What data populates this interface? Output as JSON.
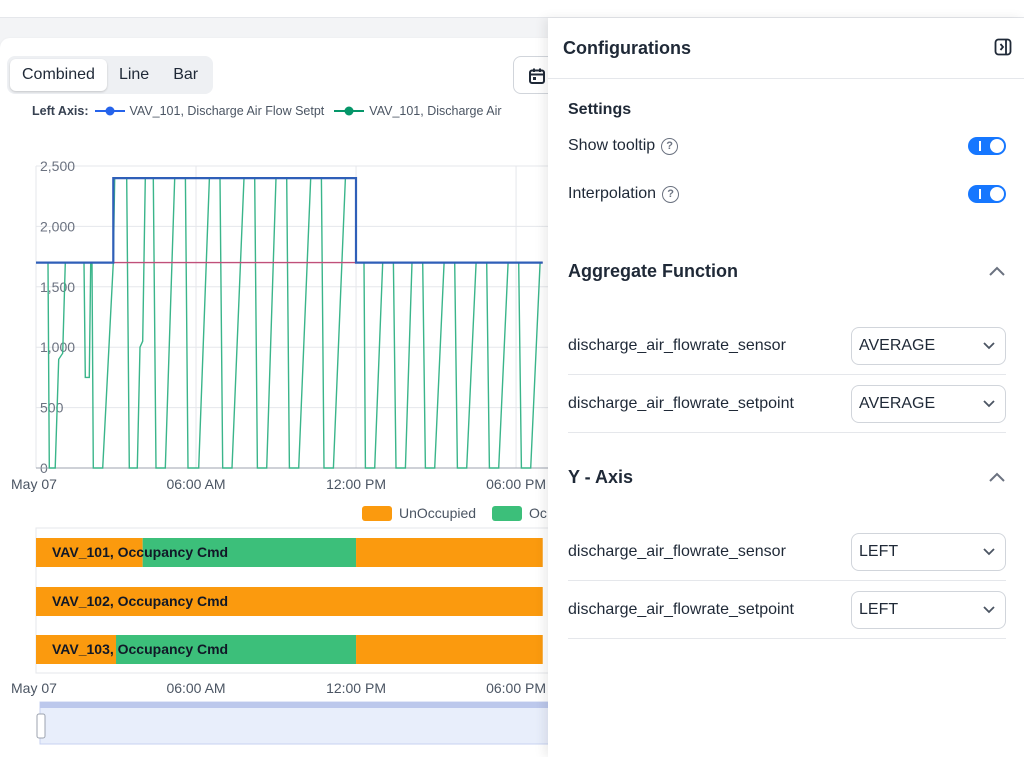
{
  "chart_controls": {
    "tabs": [
      {
        "label": "Combined",
        "active": true
      },
      {
        "label": "Line",
        "active": false
      },
      {
        "label": "Bar",
        "active": false
      }
    ],
    "date_icon": "calendar-icon"
  },
  "legend": {
    "label": "Left Axis:",
    "items": [
      {
        "name": "VAV_101, Discharge Air Flow Setpt",
        "color": "#2563eb"
      },
      {
        "name": "VAV_101, Discharge Air",
        "color": "#059669"
      }
    ]
  },
  "chart_data": [
    {
      "type": "line",
      "x_ticks": [
        "May 07",
        "06:00 AM",
        "12:00 PM",
        "06:00 PM"
      ],
      "y_ticks": [
        "0",
        "500",
        "1,000",
        "1,500",
        "2,000",
        "2,500"
      ],
      "ylim": [
        0,
        2500
      ],
      "grid": true,
      "series": [
        {
          "name": "VAV_101, Discharge Air Flow Setpt",
          "color": "#2f5fb8",
          "points": [
            [
              0,
              1700
            ],
            [
              2.9,
              1700
            ],
            [
              2.9,
              2400
            ],
            [
              12.0,
              2400
            ],
            [
              12.0,
              1700
            ],
            [
              19.0,
              1700
            ]
          ]
        },
        {
          "name": "VAV_101, Discharge Air",
          "color": "#3ab58a",
          "points": [
            [
              0,
              1700
            ],
            [
              0.45,
              1700
            ],
            [
              0.5,
              0
            ],
            [
              0.72,
              0
            ],
            [
              0.85,
              900
            ],
            [
              1.0,
              950
            ],
            [
              1.1,
              1700
            ],
            [
              1.8,
              1700
            ],
            [
              1.85,
              750
            ],
            [
              2.0,
              750
            ],
            [
              2.05,
              1700
            ],
            [
              2.1,
              1700
            ],
            [
              2.15,
              0
            ],
            [
              2.5,
              0
            ],
            [
              2.9,
              1700
            ],
            [
              2.95,
              2400
            ],
            [
              3.4,
              2400
            ],
            [
              3.5,
              0
            ],
            [
              3.8,
              0
            ],
            [
              3.9,
              1000
            ],
            [
              4.0,
              1050
            ],
            [
              4.1,
              2400
            ],
            [
              4.4,
              2400
            ],
            [
              4.5,
              0
            ],
            [
              4.85,
              0
            ],
            [
              5.2,
              2400
            ],
            [
              5.6,
              2400
            ],
            [
              5.7,
              0
            ],
            [
              6.1,
              0
            ],
            [
              6.5,
              2400
            ],
            [
              6.9,
              2400
            ],
            [
              7.0,
              0
            ],
            [
              7.35,
              0
            ],
            [
              7.8,
              2400
            ],
            [
              8.2,
              2400
            ],
            [
              8.3,
              0
            ],
            [
              8.65,
              0
            ],
            [
              9.0,
              2400
            ],
            [
              9.4,
              2400
            ],
            [
              9.5,
              0
            ],
            [
              9.85,
              0
            ],
            [
              10.3,
              2400
            ],
            [
              10.7,
              2400
            ],
            [
              10.8,
              0
            ],
            [
              11.15,
              0
            ],
            [
              11.6,
              2400
            ],
            [
              12.0,
              2400
            ],
            [
              12.0,
              1700
            ],
            [
              12.3,
              1700
            ],
            [
              12.35,
              0
            ],
            [
              12.7,
              0
            ],
            [
              13.0,
              1700
            ],
            [
              13.4,
              1700
            ],
            [
              13.5,
              0
            ],
            [
              13.85,
              0
            ],
            [
              14.1,
              1700
            ],
            [
              14.5,
              1700
            ],
            [
              14.6,
              0
            ],
            [
              14.95,
              0
            ],
            [
              15.3,
              1700
            ],
            [
              15.7,
              1700
            ],
            [
              15.8,
              0
            ],
            [
              16.15,
              0
            ],
            [
              16.5,
              1700
            ],
            [
              16.9,
              1700
            ],
            [
              17.0,
              0
            ],
            [
              17.35,
              0
            ],
            [
              17.7,
              1700
            ],
            [
              18.1,
              1700
            ],
            [
              18.2,
              0
            ],
            [
              18.55,
              0
            ],
            [
              18.9,
              1700
            ]
          ]
        },
        {
          "name": "",
          "color": "#c0507a",
          "points": [
            [
              0,
              1700
            ],
            [
              19.0,
              1700
            ]
          ]
        }
      ]
    },
    {
      "type": "bar",
      "legend": [
        {
          "name": "UnOccupied",
          "color": "#fb9a0e"
        },
        {
          "name": "Oc",
          "color": "#3cbf7a"
        }
      ],
      "x_ticks": [
        "May 07",
        "06:00 AM",
        "12:00 PM",
        "06:00 PM"
      ],
      "rows": [
        {
          "label": "VAV_101, Occupancy Cmd",
          "segments": [
            {
              "state": "UnOccupied",
              "from": 0,
              "to": 4.0
            },
            {
              "state": "Occupied",
              "from": 4.0,
              "to": 12.0
            },
            {
              "state": "UnOccupied",
              "from": 12.0,
              "to": 19.0
            }
          ]
        },
        {
          "label": "VAV_102, Occupancy Cmd",
          "segments": [
            {
              "state": "UnOccupied",
              "from": 0,
              "to": 19.0
            }
          ]
        },
        {
          "label": "VAV_103, Occupancy Cmd",
          "segments": [
            {
              "state": "UnOccupied",
              "from": 0,
              "to": 3.0
            },
            {
              "state": "Occupied",
              "from": 3.0,
              "to": 12.0
            },
            {
              "state": "UnOccupied",
              "from": 12.0,
              "to": 19.0
            }
          ]
        }
      ]
    }
  ],
  "panel": {
    "title": "Configurations",
    "collapse_icon": "panel-collapse-icon",
    "settings": {
      "heading": "Settings",
      "show_tooltip": {
        "label": "Show tooltip",
        "on": true
      },
      "interpolation": {
        "label": "Interpolation",
        "on": true
      },
      "help_icon": "?"
    },
    "aggregate": {
      "heading": "Aggregate Function",
      "rows": [
        {
          "name": "discharge_air_flowrate_sensor",
          "value": "AVERAGE"
        },
        {
          "name": "discharge_air_flowrate_setpoint",
          "value": "AVERAGE"
        }
      ]
    },
    "yaxis": {
      "heading": "Y - Axis",
      "rows": [
        {
          "name": "discharge_air_flowrate_sensor",
          "value": "LEFT"
        },
        {
          "name": "discharge_air_flowrate_setpoint",
          "value": "LEFT"
        }
      ]
    }
  }
}
